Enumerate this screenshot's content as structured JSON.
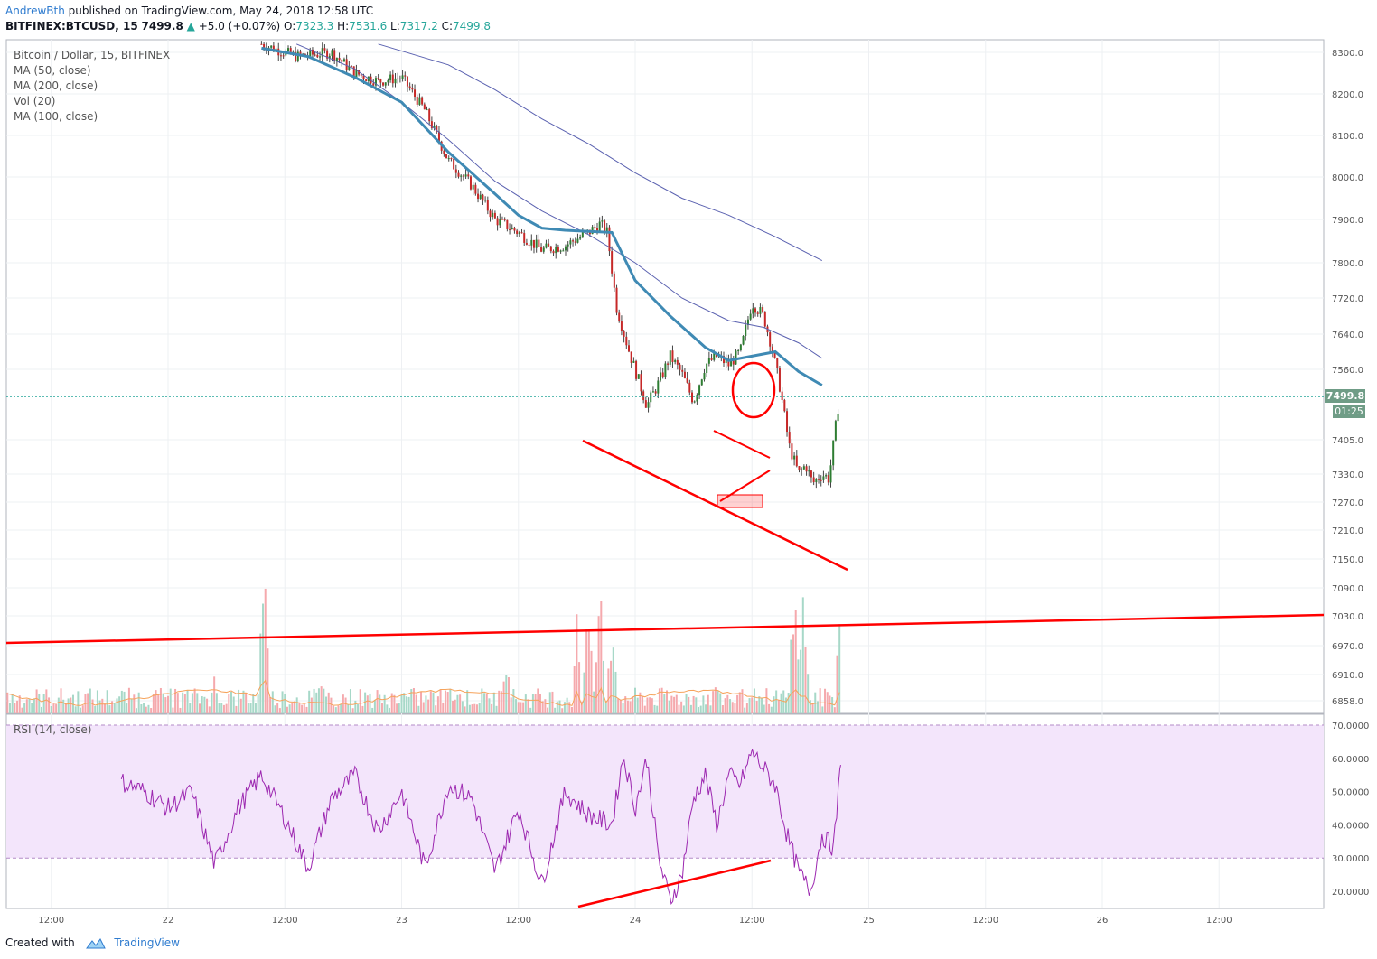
{
  "header": {
    "author": "AndrewBth",
    "published_text": "published on TradingView.com, May 24, 2018 12:58 UTC",
    "symbol": "BITFINEX:BTCUSD, 15",
    "last": "7499.8",
    "change": "+5.0 (+0.07%)",
    "o_label": "O:",
    "o": "7323.3",
    "h_label": "H:",
    "h": "7531.6",
    "l_label": "L:",
    "l": "7317.2",
    "c_label": "C:",
    "c": "7499.8"
  },
  "legend": {
    "title": "Bitcoin / Dollar, 15, BITFINEX",
    "items": [
      "MA (50, close)",
      "MA (200, close)",
      "Vol (20)",
      "MA (100, close)"
    ]
  },
  "rsi_label": "RSI (14, close)",
  "price_badge": "7499.8",
  "timer_badge": "01:25",
  "footer": {
    "created": "Created with",
    "brand": "TradingView"
  },
  "colors": {
    "up": "#26a69a",
    "down": "#ef5350",
    "ma50": "#3f8ab4",
    "ma100": "#5a61b0",
    "trend": "#ff0000",
    "rsi": "#9c27b0",
    "rsi_band": "#f3e5fb",
    "badge": "#6f9c86"
  },
  "chart_data": [
    {
      "type": "candlestick",
      "title": "Bitcoin / Dollar, 15, BITFINEX",
      "x_ticks": [
        "12:00",
        "22",
        "12:00",
        "23",
        "12:00",
        "24",
        "12:00",
        "25",
        "12:00",
        "26",
        "12:00"
      ],
      "y_ticks": [
        8300.0,
        8200.0,
        8100.0,
        8000.0,
        7900.0,
        7800.0,
        7720.0,
        7640.0,
        7560.0,
        7405.0,
        7330.0,
        7270.0,
        7210.0,
        7150.0,
        7090.0,
        7030.0,
        6970.0,
        6910.0,
        6858.0
      ],
      "y_tick_labels": [
        "8300.0",
        "8200.0",
        "8100.0",
        "8000.0",
        "7900.0",
        "7800.0",
        "7720.0",
        "7640.0",
        "7560.0",
        "7405.0",
        "7330.0",
        "7270.0",
        "7210.0",
        "7150.0",
        "7090.0",
        "7030.0",
        "6970.0",
        "6910.0",
        "6858.0"
      ],
      "last_price": 7499.8,
      "close_path": [
        [
          -1.6,
          8320
        ],
        [
          -1.45,
          8290
        ],
        [
          -1.3,
          8300
        ],
        [
          -1.2,
          8250
        ],
        [
          -1.1,
          8230
        ],
        [
          -1.0,
          8240
        ],
        [
          -0.9,
          8160
        ],
        [
          -0.8,
          8040
        ],
        [
          -0.7,
          7980
        ],
        [
          -0.6,
          7900
        ],
        [
          -0.5,
          7870
        ],
        [
          -0.4,
          7830
        ],
        [
          -0.3,
          7840
        ],
        [
          -0.2,
          7870
        ],
        [
          -0.15,
          7890
        ],
        [
          -0.12,
          7870
        ],
        [
          -0.08,
          7700
        ],
        [
          -0.02,
          7590
        ],
        [
          0.05,
          7480
        ],
        [
          0.1,
          7530
        ],
        [
          0.15,
          7590
        ],
        [
          0.2,
          7550
        ],
        [
          0.25,
          7490
        ],
        [
          0.3,
          7570
        ],
        [
          0.35,
          7590
        ],
        [
          0.4,
          7570
        ],
        [
          0.45,
          7600
        ],
        [
          0.5,
          7710
        ],
        [
          0.55,
          7680
        ],
        [
          0.58,
          7620
        ],
        [
          0.62,
          7520
        ],
        [
          0.66,
          7390
        ],
        [
          0.7,
          7330
        ],
        [
          0.73,
          7350
        ],
        [
          0.76,
          7310
        ],
        [
          0.8,
          7330
        ],
        [
          0.83,
          7320
        ],
        [
          0.875,
          7499.8
        ]
      ],
      "ma50": [
        [
          -1.6,
          8310
        ],
        [
          -1.4,
          8290
        ],
        [
          -1.2,
          8240
        ],
        [
          -1.0,
          8180
        ],
        [
          -0.8,
          8060
        ],
        [
          -0.6,
          7960
        ],
        [
          -0.5,
          7910
        ],
        [
          -0.4,
          7880
        ],
        [
          -0.3,
          7875
        ],
        [
          -0.1,
          7870
        ],
        [
          0.0,
          7760
        ],
        [
          0.15,
          7680
        ],
        [
          0.3,
          7610
        ],
        [
          0.4,
          7580
        ],
        [
          0.5,
          7590
        ],
        [
          0.6,
          7600
        ],
        [
          0.7,
          7555
        ],
        [
          0.8,
          7525
        ]
      ],
      "ma100": [
        [
          -1.45,
          8320
        ],
        [
          -1.2,
          8260
        ],
        [
          -1.0,
          8180
        ],
        [
          -0.8,
          8090
        ],
        [
          -0.6,
          7990
        ],
        [
          -0.4,
          7920
        ],
        [
          -0.2,
          7865
        ],
        [
          0.0,
          7800
        ],
        [
          0.2,
          7720
        ],
        [
          0.4,
          7670
        ],
        [
          0.55,
          7655
        ],
        [
          0.7,
          7620
        ],
        [
          0.8,
          7585
        ]
      ],
      "ma200": [
        [
          -1.1,
          8320
        ],
        [
          -0.8,
          8270
        ],
        [
          -0.6,
          8210
        ],
        [
          -0.4,
          8140
        ],
        [
          -0.2,
          8080
        ],
        [
          0.0,
          8010
        ],
        [
          0.2,
          7950
        ],
        [
          0.4,
          7910
        ],
        [
          0.6,
          7860
        ],
        [
          0.8,
          7805
        ]
      ],
      "volume_spikes": [
        [
          -2.0,
          0.05
        ],
        [
          -1.8,
          0.25
        ],
        [
          -1.59,
          0.97
        ],
        [
          -1.35,
          0.2
        ],
        [
          -1.1,
          0.15
        ],
        [
          -0.8,
          0.2
        ],
        [
          -0.55,
          0.35
        ],
        [
          -0.25,
          0.6
        ],
        [
          -0.2,
          0.8
        ],
        [
          -0.15,
          0.9
        ],
        [
          -0.1,
          0.55
        ],
        [
          0.35,
          0.25
        ],
        [
          0.5,
          0.15
        ],
        [
          0.68,
          0.85
        ],
        [
          0.72,
          0.9
        ],
        [
          0.88,
          0.99
        ]
      ],
      "rsi": {
        "label": "RSI (14, close)",
        "band": [
          30,
          70
        ],
        "y_ticks": [
          "70.0000",
          "60.0000",
          "50.0000",
          "40.0000",
          "30.0000",
          "20.0000"
        ],
        "values": [
          [
            -2.2,
            53
          ],
          [
            -2.1,
            50
          ],
          [
            -2.0,
            45
          ],
          [
            -1.9,
            50
          ],
          [
            -1.8,
            28
          ],
          [
            -1.7,
            45
          ],
          [
            -1.6,
            55
          ],
          [
            -1.5,
            42
          ],
          [
            -1.4,
            27
          ],
          [
            -1.3,
            48
          ],
          [
            -1.2,
            55
          ],
          [
            -1.1,
            38
          ],
          [
            -1.0,
            50
          ],
          [
            -0.9,
            27
          ],
          [
            -0.8,
            52
          ],
          [
            -0.7,
            48
          ],
          [
            -0.6,
            26
          ],
          [
            -0.5,
            45
          ],
          [
            -0.4,
            22
          ],
          [
            -0.3,
            50
          ],
          [
            -0.2,
            43
          ],
          [
            -0.1,
            40
          ],
          [
            -0.05,
            61
          ],
          [
            0.0,
            45
          ],
          [
            0.05,
            60
          ],
          [
            0.1,
            30
          ],
          [
            0.15,
            17
          ],
          [
            0.2,
            25
          ],
          [
            0.25,
            48
          ],
          [
            0.3,
            55
          ],
          [
            0.35,
            40
          ],
          [
            0.4,
            55
          ],
          [
            0.45,
            52
          ],
          [
            0.5,
            62
          ],
          [
            0.55,
            57
          ],
          [
            0.6,
            52
          ],
          [
            0.65,
            37
          ],
          [
            0.7,
            26
          ],
          [
            0.75,
            20
          ],
          [
            0.8,
            37
          ],
          [
            0.85,
            33
          ],
          [
            0.88,
            58
          ]
        ]
      },
      "drawings": [
        "lower trendline",
        "horizontal trendline",
        "rsi trendline",
        "channel",
        "circle",
        "support box"
      ]
    }
  ]
}
